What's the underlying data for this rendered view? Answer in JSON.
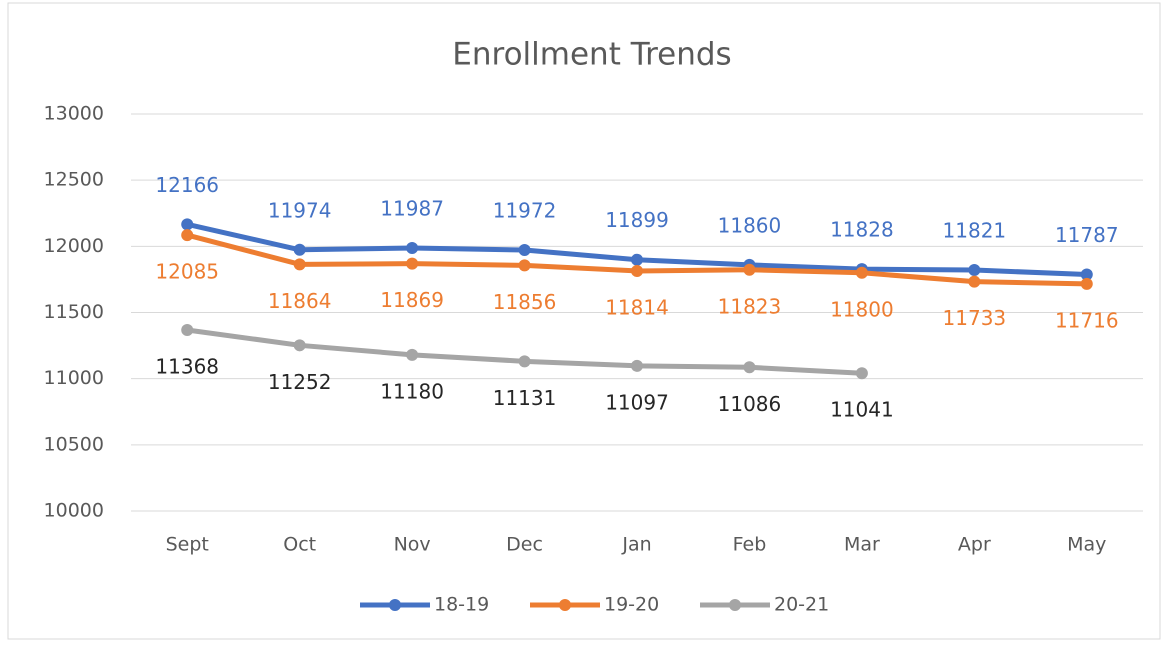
{
  "chart_data": {
    "type": "line",
    "title": "Enrollment Trends",
    "categories": [
      "Sept",
      "Oct",
      "Nov",
      "Dec",
      "Jan",
      "Feb",
      "Mar",
      "Apr",
      "May"
    ],
    "series": [
      {
        "name": "18-19",
        "color": "#4472c4",
        "values": [
          12166,
          11974,
          11987,
          11972,
          11899,
          11860,
          11828,
          11821,
          11787
        ]
      },
      {
        "name": "19-20",
        "color": "#ed7d31",
        "values": [
          12085,
          11864,
          11869,
          11856,
          11814,
          11823,
          11800,
          11733,
          11716
        ]
      },
      {
        "name": "20-21",
        "color": "#a5a5a5",
        "values": [
          11368,
          11252,
          11180,
          11131,
          11097,
          11086,
          11041,
          null,
          null
        ]
      }
    ],
    "ylim": [
      10000,
      13000
    ],
    "yticks": [
      10000,
      10500,
      11000,
      11500,
      12000,
      12500,
      13000
    ],
    "grid": true,
    "legend": "bottom"
  }
}
